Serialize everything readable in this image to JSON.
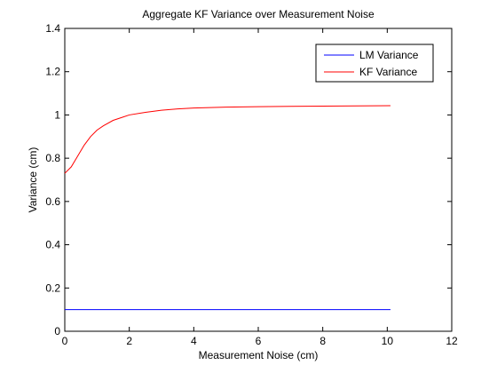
{
  "chart_data": {
    "type": "line",
    "title": "Aggregate KF Variance over Measurement Noise",
    "xlabel": "Measurement Noise (cm)",
    "ylabel": "Variance (cm)",
    "xlim": [
      0,
      12
    ],
    "ylim": [
      0,
      1.4
    ],
    "xticks": [
      0,
      2,
      4,
      6,
      8,
      10,
      12
    ],
    "yticks": [
      0,
      0.2,
      0.4,
      0.6,
      0.8,
      1,
      1.2,
      1.4
    ],
    "grid": false,
    "legend_position": "top-right",
    "series": [
      {
        "name": "LM Variance",
        "color": "#0000ff",
        "x": [
          0,
          10.1
        ],
        "y": [
          0.1,
          0.1
        ]
      },
      {
        "name": "KF Variance",
        "color": "#ff0000",
        "x": [
          0,
          0.2,
          0.4,
          0.6,
          0.8,
          1.0,
          1.2,
          1.5,
          1.8,
          2.0,
          2.5,
          3.0,
          3.5,
          4.0,
          5.0,
          6.0,
          7.0,
          8.0,
          9.0,
          10.1
        ],
        "y": [
          0.73,
          0.76,
          0.81,
          0.86,
          0.9,
          0.93,
          0.95,
          0.975,
          0.99,
          1.0,
          1.012,
          1.022,
          1.028,
          1.032,
          1.036,
          1.038,
          1.04,
          1.041,
          1.042,
          1.043
        ]
      }
    ]
  }
}
